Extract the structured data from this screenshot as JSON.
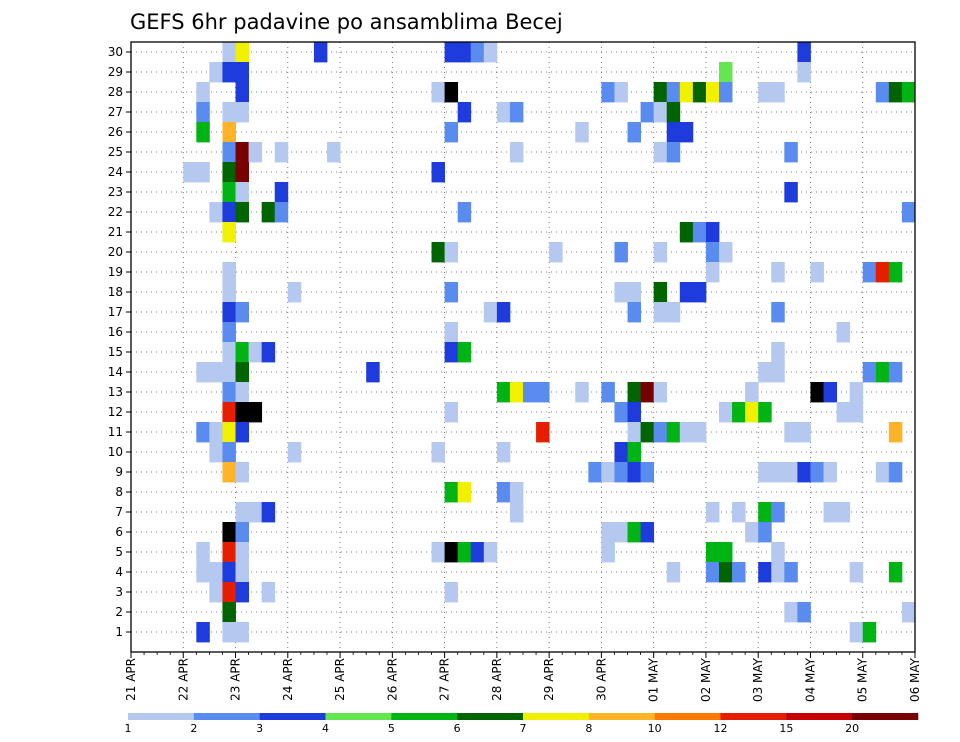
{
  "chart_data": {
    "type": "heatmap",
    "title": "GEFS 6hr padavine po ansamblima Becej",
    "xlabel": "",
    "ylabel": "",
    "x_tick_labels": [
      "21 APR",
      "22 APR",
      "23 APR",
      "24 APR",
      "25 APR",
      "26 APR",
      "27 APR",
      "28 APR",
      "29 APR",
      "30 APR",
      "01 MAY",
      "02 MAY",
      "03 MAY",
      "04 MAY",
      "05 MAY",
      "06 MAY"
    ],
    "y_tick_labels": [
      "1",
      "2",
      "3",
      "4",
      "5",
      "6",
      "7",
      "8",
      "9",
      "10",
      "11",
      "12",
      "13",
      "14",
      "15",
      "16",
      "17",
      "18",
      "19",
      "20",
      "21",
      "22",
      "23",
      "24",
      "25",
      "26",
      "27",
      "28",
      "29",
      "30"
    ],
    "grid": true,
    "time_steps_per_day": 4,
    "ensemble_members": 30,
    "legend": {
      "placement": "bottom",
      "boundaries": [
        "1",
        "2",
        "3",
        "4",
        "5",
        "6",
        "7",
        "8",
        "10",
        "12",
        "15",
        "20"
      ],
      "colors": [
        "#b4c8f0",
        "#5a8cf0",
        "#1e3cdc",
        "#64e650",
        "#00b414",
        "#006400",
        "#f0f000",
        "#ffb428",
        "#ff7800",
        "#e61e00",
        "#c80000",
        "#780000"
      ]
    },
    "cells": [
      [
        30,
        1.75,
        1
      ],
      [
        30,
        2,
        7
      ],
      [
        30,
        3.5,
        3
      ],
      [
        30,
        6,
        3
      ],
      [
        30,
        6.25,
        3
      ],
      [
        30,
        6.5,
        2
      ],
      [
        30,
        6.75,
        1
      ],
      [
        30,
        12.75,
        3
      ],
      [
        29,
        1.5,
        1
      ],
      [
        29,
        1.75,
        3
      ],
      [
        29,
        2,
        3
      ],
      [
        29,
        11.25,
        4
      ],
      [
        29,
        12.75,
        1
      ],
      [
        28,
        1.25,
        1
      ],
      [
        28,
        2,
        3
      ],
      [
        28,
        5.75,
        1
      ],
      [
        28,
        6,
        15
      ],
      [
        28,
        9,
        2
      ],
      [
        28,
        9.25,
        1
      ],
      [
        28,
        10,
        6
      ],
      [
        28,
        10.25,
        2
      ],
      [
        28,
        10.5,
        7
      ],
      [
        28,
        10.75,
        6
      ],
      [
        28,
        11,
        7
      ],
      [
        28,
        11.25,
        2
      ],
      [
        28,
        12,
        1
      ],
      [
        28,
        12.25,
        1
      ],
      [
        28,
        14.25,
        2
      ],
      [
        28,
        14.5,
        6
      ],
      [
        28,
        14.75,
        5
      ],
      [
        27,
        1.25,
        2
      ],
      [
        27,
        1.75,
        1
      ],
      [
        27,
        2,
        1
      ],
      [
        27,
        6.25,
        3
      ],
      [
        27,
        7,
        1
      ],
      [
        27,
        7.25,
        2
      ],
      [
        27,
        9.75,
        2
      ],
      [
        27,
        10,
        1
      ],
      [
        27,
        10.25,
        6
      ],
      [
        26,
        1.25,
        5
      ],
      [
        26,
        1.75,
        8
      ],
      [
        26,
        6,
        2
      ],
      [
        26,
        8.5,
        1
      ],
      [
        26,
        9.5,
        2
      ],
      [
        26,
        10.25,
        3
      ],
      [
        26,
        10.5,
        3
      ],
      [
        25,
        1.75,
        2
      ],
      [
        25,
        2,
        12
      ],
      [
        25,
        2.25,
        1
      ],
      [
        25,
        2.75,
        1
      ],
      [
        25,
        3.75,
        1
      ],
      [
        25,
        7.25,
        1
      ],
      [
        25,
        10,
        1
      ],
      [
        25,
        10.25,
        2
      ],
      [
        25,
        12.5,
        2
      ],
      [
        24,
        1,
        1
      ],
      [
        24,
        1.25,
        1
      ],
      [
        24,
        1.75,
        6
      ],
      [
        24,
        2,
        12
      ],
      [
        24,
        5.75,
        3
      ],
      [
        23,
        1.75,
        5
      ],
      [
        23,
        2,
        1
      ],
      [
        23,
        2.75,
        3
      ],
      [
        23,
        12.5,
        3
      ],
      [
        22,
        1.5,
        1
      ],
      [
        22,
        1.75,
        3
      ],
      [
        22,
        2,
        6
      ],
      [
        22,
        2.5,
        6
      ],
      [
        22,
        2.75,
        2
      ],
      [
        22,
        6.25,
        2
      ],
      [
        22,
        14.75,
        2
      ],
      [
        21,
        1.75,
        7
      ],
      [
        21,
        10.5,
        6
      ],
      [
        21,
        10.75,
        2
      ],
      [
        21,
        11,
        3
      ],
      [
        20,
        5.75,
        6
      ],
      [
        20,
        6,
        1
      ],
      [
        20,
        8,
        1
      ],
      [
        20,
        9.25,
        2
      ],
      [
        20,
        10,
        1
      ],
      [
        20,
        11,
        2
      ],
      [
        20,
        11.25,
        1
      ],
      [
        19,
        1.75,
        1
      ],
      [
        19,
        11,
        1
      ],
      [
        19,
        12.25,
        1
      ],
      [
        19,
        13,
        1
      ],
      [
        19,
        14,
        2
      ],
      [
        19,
        14.25,
        10
      ],
      [
        19,
        14.5,
        5
      ],
      [
        18,
        1.75,
        1
      ],
      [
        18,
        3,
        1
      ],
      [
        18,
        6,
        2
      ],
      [
        18,
        9.25,
        1
      ],
      [
        18,
        9.5,
        1
      ],
      [
        18,
        10,
        6
      ],
      [
        18,
        10.5,
        3
      ],
      [
        18,
        10.75,
        3
      ],
      [
        17,
        1.75,
        3
      ],
      [
        17,
        2,
        2
      ],
      [
        17,
        6.75,
        1
      ],
      [
        17,
        7,
        3
      ],
      [
        17,
        9.5,
        2
      ],
      [
        17,
        10,
        1
      ],
      [
        17,
        10.25,
        1
      ],
      [
        17,
        12.25,
        2
      ],
      [
        16,
        1.75,
        2
      ],
      [
        16,
        6,
        1
      ],
      [
        16,
        13.5,
        1
      ],
      [
        15,
        1.75,
        1
      ],
      [
        15,
        2,
        5
      ],
      [
        15,
        2.25,
        1
      ],
      [
        15,
        2.5,
        3
      ],
      [
        15,
        6,
        3
      ],
      [
        15,
        6.25,
        5
      ],
      [
        15,
        12.25,
        1
      ],
      [
        14,
        1.25,
        1
      ],
      [
        14,
        1.5,
        1
      ],
      [
        14,
        1.75,
        1
      ],
      [
        14,
        2,
        6
      ],
      [
        14,
        4.5,
        3
      ],
      [
        14,
        12,
        1
      ],
      [
        14,
        12.25,
        1
      ],
      [
        14,
        14,
        2
      ],
      [
        14,
        14.25,
        5
      ],
      [
        14,
        14.5,
        2
      ],
      [
        13,
        1.75,
        2
      ],
      [
        13,
        2,
        1
      ],
      [
        13,
        7,
        5
      ],
      [
        13,
        7.25,
        7
      ],
      [
        13,
        7.5,
        2
      ],
      [
        13,
        7.75,
        2
      ],
      [
        13,
        8.5,
        1
      ],
      [
        13,
        9,
        2
      ],
      [
        13,
        9.5,
        6
      ],
      [
        13,
        9.75,
        12
      ],
      [
        13,
        10,
        1
      ],
      [
        13,
        11.75,
        1
      ],
      [
        13,
        13,
        20
      ],
      [
        13,
        13.25,
        3
      ],
      [
        13,
        13.75,
        1
      ],
      [
        12,
        1.75,
        10
      ],
      [
        12,
        2,
        15
      ],
      [
        12,
        2.25,
        15
      ],
      [
        12,
        6,
        1
      ],
      [
        12,
        9.25,
        2
      ],
      [
        12,
        9.5,
        3
      ],
      [
        12,
        11.25,
        1
      ],
      [
        12,
        11.5,
        5
      ],
      [
        12,
        11.75,
        7
      ],
      [
        12,
        12,
        5
      ],
      [
        12,
        13.5,
        1
      ],
      [
        12,
        13.75,
        1
      ],
      [
        11,
        1.25,
        2
      ],
      [
        11,
        1.5,
        1
      ],
      [
        11,
        1.75,
        7
      ],
      [
        11,
        2,
        3
      ],
      [
        11,
        7.75,
        10
      ],
      [
        11,
        9.5,
        1
      ],
      [
        11,
        9.75,
        6
      ],
      [
        11,
        10,
        2
      ],
      [
        11,
        10.25,
        5
      ],
      [
        11,
        10.5,
        1
      ],
      [
        11,
        10.75,
        1
      ],
      [
        11,
        12.5,
        1
      ],
      [
        11,
        12.75,
        1
      ],
      [
        11,
        14.5,
        8
      ],
      [
        10,
        1.5,
        1
      ],
      [
        10,
        1.75,
        2
      ],
      [
        10,
        3,
        1
      ],
      [
        10,
        5.75,
        1
      ],
      [
        10,
        7,
        1
      ],
      [
        10,
        9.25,
        3
      ],
      [
        10,
        9.5,
        5
      ],
      [
        9,
        1.75,
        8
      ],
      [
        9,
        2,
        1
      ],
      [
        9,
        8.75,
        2
      ],
      [
        9,
        9,
        1
      ],
      [
        9,
        9.25,
        2
      ],
      [
        9,
        9.5,
        3
      ],
      [
        9,
        9.75,
        2
      ],
      [
        9,
        12,
        1
      ],
      [
        9,
        12.25,
        1
      ],
      [
        9,
        12.5,
        1
      ],
      [
        9,
        12.75,
        3
      ],
      [
        9,
        13,
        2
      ],
      [
        9,
        13.25,
        1
      ],
      [
        9,
        14.25,
        1
      ],
      [
        9,
        14.5,
        2
      ],
      [
        8,
        6,
        5
      ],
      [
        8,
        6.25,
        7
      ],
      [
        8,
        7,
        2
      ],
      [
        8,
        7.25,
        1
      ],
      [
        7,
        2,
        1
      ],
      [
        7,
        2.25,
        1
      ],
      [
        7,
        2.5,
        3
      ],
      [
        7,
        7.25,
        1
      ],
      [
        7,
        11,
        1
      ],
      [
        7,
        11.5,
        1
      ],
      [
        7,
        12,
        5
      ],
      [
        7,
        12.25,
        2
      ],
      [
        7,
        13.25,
        1
      ],
      [
        7,
        13.5,
        1
      ],
      [
        6,
        1.75,
        15
      ],
      [
        6,
        2,
        2
      ],
      [
        6,
        9,
        1
      ],
      [
        6,
        9.25,
        1
      ],
      [
        6,
        9.5,
        5
      ],
      [
        6,
        9.75,
        3
      ],
      [
        6,
        11.75,
        1
      ],
      [
        6,
        12,
        2
      ],
      [
        5,
        1.25,
        1
      ],
      [
        5,
        1.75,
        10
      ],
      [
        5,
        2,
        1
      ],
      [
        5,
        5.75,
        1
      ],
      [
        5,
        6,
        20
      ],
      [
        5,
        6.25,
        5
      ],
      [
        5,
        6.5,
        3
      ],
      [
        5,
        6.75,
        1
      ],
      [
        5,
        9,
        1
      ],
      [
        5,
        11,
        5
      ],
      [
        5,
        11.25,
        5
      ],
      [
        5,
        12.25,
        1
      ],
      [
        4,
        1.25,
        1
      ],
      [
        4,
        1.5,
        1
      ],
      [
        4,
        1.75,
        3
      ],
      [
        4,
        2,
        1
      ],
      [
        4,
        10.25,
        1
      ],
      [
        4,
        11,
        2
      ],
      [
        4,
        11.25,
        6
      ],
      [
        4,
        11.5,
        2
      ],
      [
        4,
        12,
        3
      ],
      [
        4,
        12.25,
        1
      ],
      [
        4,
        12.5,
        2
      ],
      [
        4,
        13.75,
        1
      ],
      [
        4,
        14.5,
        5
      ],
      [
        3,
        1.5,
        1
      ],
      [
        3,
        1.75,
        10
      ],
      [
        3,
        2,
        3
      ],
      [
        3,
        2.5,
        1
      ],
      [
        3,
        6,
        1
      ],
      [
        2,
        1.75,
        6
      ],
      [
        2,
        12.5,
        1
      ],
      [
        2,
        12.75,
        2
      ],
      [
        2,
        14.75,
        1
      ],
      [
        1,
        1.25,
        3
      ],
      [
        1,
        1.75,
        1
      ],
      [
        1,
        2,
        1
      ],
      [
        1,
        13.75,
        1
      ],
      [
        1,
        14,
        5
      ]
    ]
  }
}
